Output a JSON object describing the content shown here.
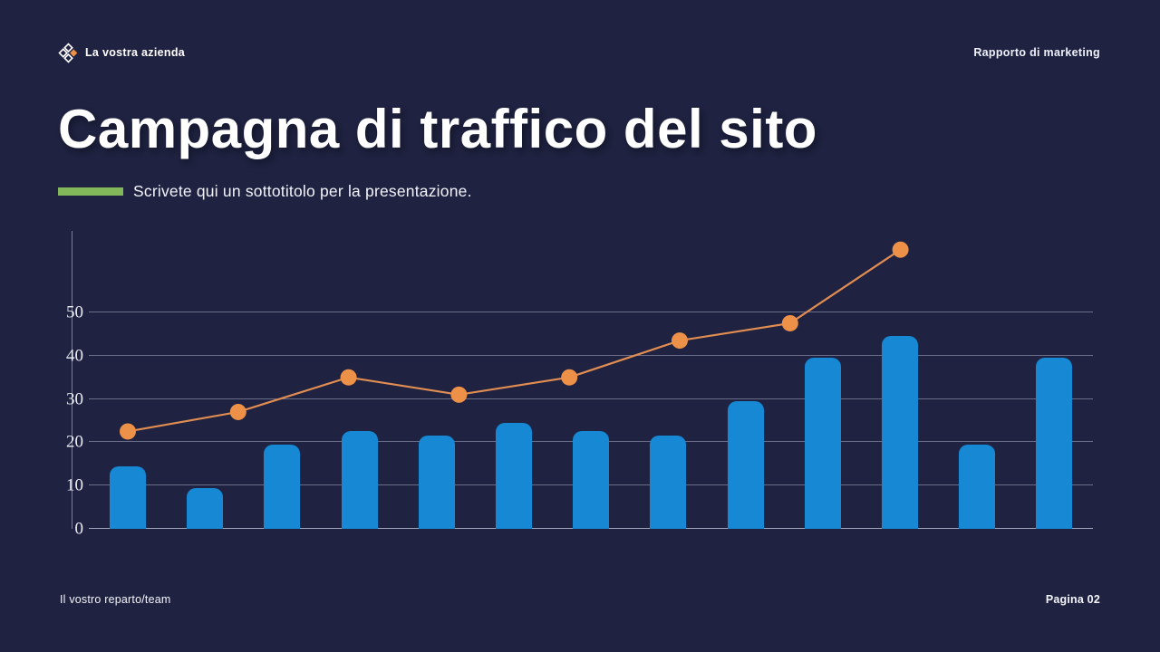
{
  "header": {
    "company_name": "La vostra azienda",
    "report_label": "Rapporto di marketing"
  },
  "title": "Campagna di traffico del sito",
  "subtitle": "Scrivete qui un sottotitolo per la presentazione.",
  "footer": {
    "department": "Il vostro reparto/team",
    "page": "Pagina 02"
  },
  "colors": {
    "background": "#1f2240",
    "bar_blue": "#1788d4",
    "line_orange": "#ee9148",
    "accent_green": "#82b75a",
    "grid": "#b9c0d8",
    "text": "#ffffff"
  },
  "chart_data": {
    "type": "combo",
    "title": "",
    "xlabel": "",
    "ylabel": "",
    "x_tick_labels_visible": false,
    "yticks": [
      0,
      10,
      20,
      30,
      40,
      50
    ],
    "ylim": [
      0,
      69
    ],
    "grid": true,
    "legend": "none",
    "series": [
      {
        "name": "website-traffic-bars",
        "type": "bar",
        "color": "#1788d4",
        "values": [
          14.5,
          9.5,
          19.5,
          22.5,
          21.5,
          24.5,
          22.5,
          21.5,
          29.5,
          39.5,
          44.5,
          19.5,
          39.5
        ]
      },
      {
        "name": "trend-line",
        "type": "line",
        "color": "#ee9148",
        "values": [
          22.5,
          27,
          35,
          31,
          35,
          43.5,
          47.5,
          64.5
        ]
      }
    ]
  }
}
